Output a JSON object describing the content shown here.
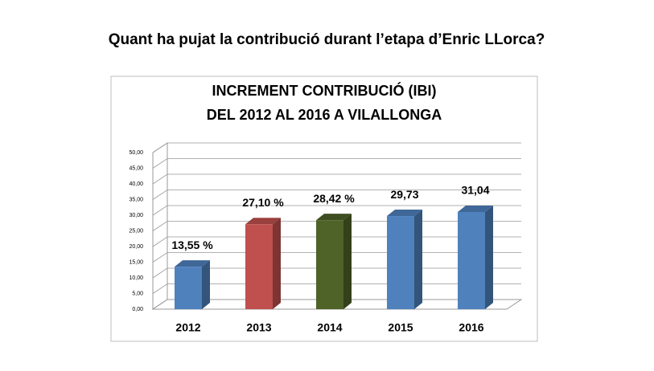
{
  "header": {
    "question": "Quant ha pujat la contribució durant l’etapa d’Enric LLorca?"
  },
  "chart_data": {
    "type": "bar3d",
    "title": [
      "INCREMENT CONTRIBUCIÓ (IBI)",
      "DEL 2012 AL 2016 A VILALLONGA"
    ],
    "categories": [
      "2012",
      "2013",
      "2014",
      "2015",
      "2016"
    ],
    "values": [
      13.55,
      27.1,
      28.42,
      29.73,
      31.04
    ],
    "value_labels": [
      "13,55 %",
      "27,10 %",
      "28,42 %",
      "29,73",
      "31,04"
    ],
    "colors": [
      "#4f81bd",
      "#c0504d",
      "#4f6228",
      "#4f81bd",
      "#4f81bd"
    ],
    "ylim": [
      0,
      50
    ],
    "yticks": [
      {
        "value": 0,
        "label": "0,00"
      },
      {
        "value": 5,
        "label": "5,00"
      },
      {
        "value": 10,
        "label": "10,00"
      },
      {
        "value": 15,
        "label": "15,00"
      },
      {
        "value": 20,
        "label": "20,00"
      },
      {
        "value": 25,
        "label": "25,00"
      },
      {
        "value": 30,
        "label": "30,00"
      },
      {
        "value": 35,
        "label": "35,00"
      },
      {
        "value": 40,
        "label": "40,00"
      },
      {
        "value": 45,
        "label": "45,00"
      },
      {
        "value": 50,
        "label": "50,00"
      }
    ],
    "grid": true
  }
}
